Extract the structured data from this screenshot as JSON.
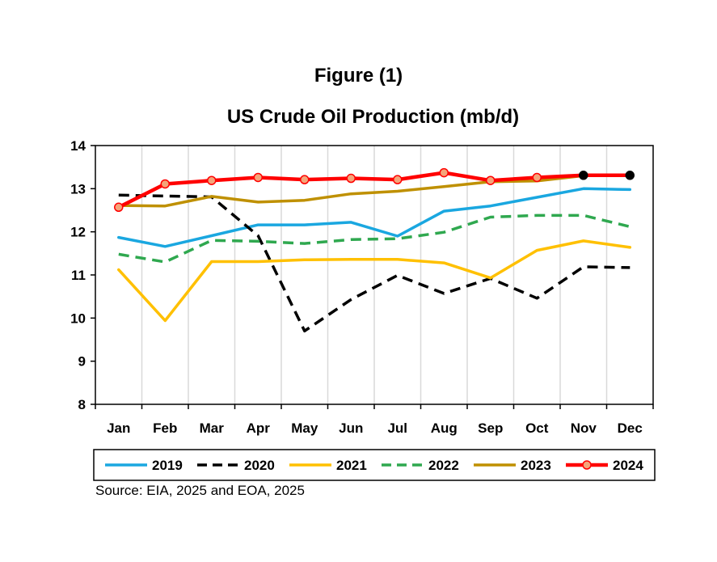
{
  "figure_label": "Figure (1)",
  "chart_data": {
    "type": "line",
    "title": "US Crude Oil Production (mb/d)",
    "xlabel": "",
    "ylabel": "",
    "categories": [
      "Jan",
      "Feb",
      "Mar",
      "Apr",
      "May",
      "Jun",
      "Jul",
      "Aug",
      "Sep",
      "Oct",
      "Nov",
      "Dec"
    ],
    "ylim": [
      8,
      14
    ],
    "yticks": [
      8,
      9,
      10,
      11,
      12,
      13,
      14
    ],
    "grid": "vertical",
    "legend_position": "bottom",
    "series": [
      {
        "name": "2019",
        "color": "#1aa7e0",
        "dash": "solid",
        "marker": "none",
        "values": [
          11.87,
          11.66,
          11.91,
          12.16,
          12.16,
          12.22,
          11.9,
          12.48,
          12.6,
          12.8,
          13.0,
          12.98
        ]
      },
      {
        "name": "2020",
        "color": "#000000",
        "dash": "dash",
        "marker": "none",
        "values": [
          12.85,
          12.83,
          12.81,
          11.91,
          9.7,
          10.43,
          10.99,
          10.57,
          10.92,
          10.46,
          11.19,
          11.17
        ]
      },
      {
        "name": "2021",
        "color": "#ffc000",
        "dash": "solid",
        "marker": "none",
        "values": [
          11.12,
          9.94,
          11.31,
          11.31,
          11.35,
          11.36,
          11.36,
          11.28,
          10.93,
          11.57,
          11.79,
          11.64
        ]
      },
      {
        "name": "2022",
        "color": "#2fa84f",
        "dash": "dash",
        "marker": "none",
        "values": [
          11.48,
          11.3,
          11.8,
          11.78,
          11.73,
          11.82,
          11.84,
          11.99,
          12.34,
          12.38,
          12.38,
          12.12
        ]
      },
      {
        "name": "2023",
        "color": "#bf9000",
        "dash": "solid",
        "marker": "none",
        "values": [
          12.61,
          12.6,
          12.82,
          12.69,
          12.73,
          12.88,
          12.94,
          13.05,
          13.16,
          13.18,
          13.3,
          null
        ]
      },
      {
        "name": "2024",
        "color": "#ff0000",
        "dash": "solid",
        "marker": "circle",
        "values": [
          12.57,
          13.11,
          13.19,
          13.26,
          13.21,
          13.24,
          13.21,
          13.37,
          13.19,
          13.26,
          13.31,
          13.31
        ],
        "marker_colors": [
          "#f4a57a",
          "#f4a57a",
          "#f4a57a",
          "#f4a57a",
          "#f4a57a",
          "#f4a57a",
          "#f4a57a",
          "#f4a57a",
          "#f4a57a",
          "#f4a57a",
          "#000000",
          "#000000"
        ]
      }
    ]
  },
  "source_note": "Source: EIA, 2025 and EOA, 2025"
}
